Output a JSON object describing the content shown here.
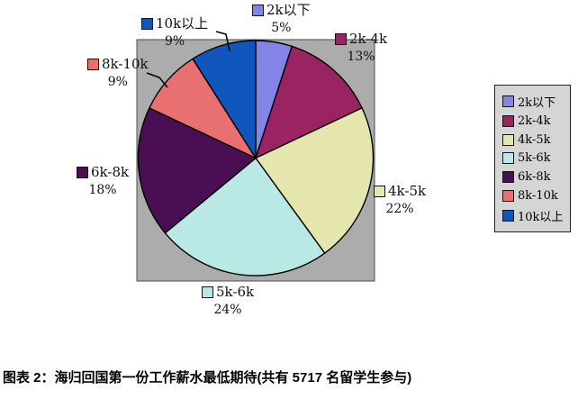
{
  "chart_data": {
    "type": "pie",
    "title": "图表 2：海归回国第一份工作薪水最低期待(共有 5717 名留学生参与)",
    "participants_count": 5717,
    "legend_position": "right",
    "plot_bg": "#ACACAC",
    "page_bg": "#FFFFFF",
    "slice_stroke": "#000000",
    "slices": [
      {
        "label": "2k以下",
        "value": 5,
        "pct": "5%",
        "color": "#8383E8"
      },
      {
        "label": "2k-4k",
        "value": 13,
        "pct": "13%",
        "color": "#9A2462"
      },
      {
        "label": "4k-5k",
        "value": 22,
        "pct": "22%",
        "color": "#E4E6AE"
      },
      {
        "label": "5k-6k",
        "value": 24,
        "pct": "24%",
        "color": "#B9E8E5"
      },
      {
        "label": "6k-8k",
        "value": 18,
        "pct": "18%",
        "color": "#4A0E52"
      },
      {
        "label": "8k-10k",
        "value": 9,
        "pct": "9%",
        "color": "#E97070"
      },
      {
        "label": "10k以上",
        "value": 9,
        "pct": "9%",
        "color": "#1156BC"
      }
    ]
  }
}
